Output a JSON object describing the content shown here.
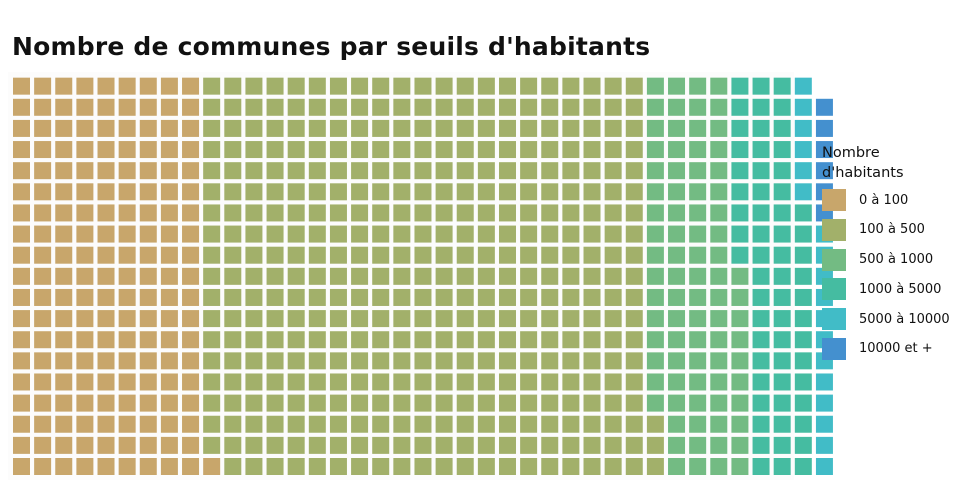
{
  "title": "Nombre de communes par seuils d'habitants",
  "chart_data": {
    "type": "waffle",
    "title": "Nombre de communes par seuils d'habitants",
    "rows": 19,
    "fill_order": "column-wise, bottom to top, left to right",
    "legend_title": "Nombre d'habitants",
    "legend_position": "right",
    "categories": [
      "0 à 100",
      "100 à 500",
      "500 à 1000",
      "1000 à 5000",
      "5000 à 10000",
      "10000 et +"
    ],
    "values": [
      172,
      401,
      83,
      60,
      18,
      6
    ],
    "colors": [
      "#C8A66B",
      "#A2B06A",
      "#73BB83",
      "#45BCA1",
      "#41BCC7",
      "#4490CF"
    ]
  }
}
